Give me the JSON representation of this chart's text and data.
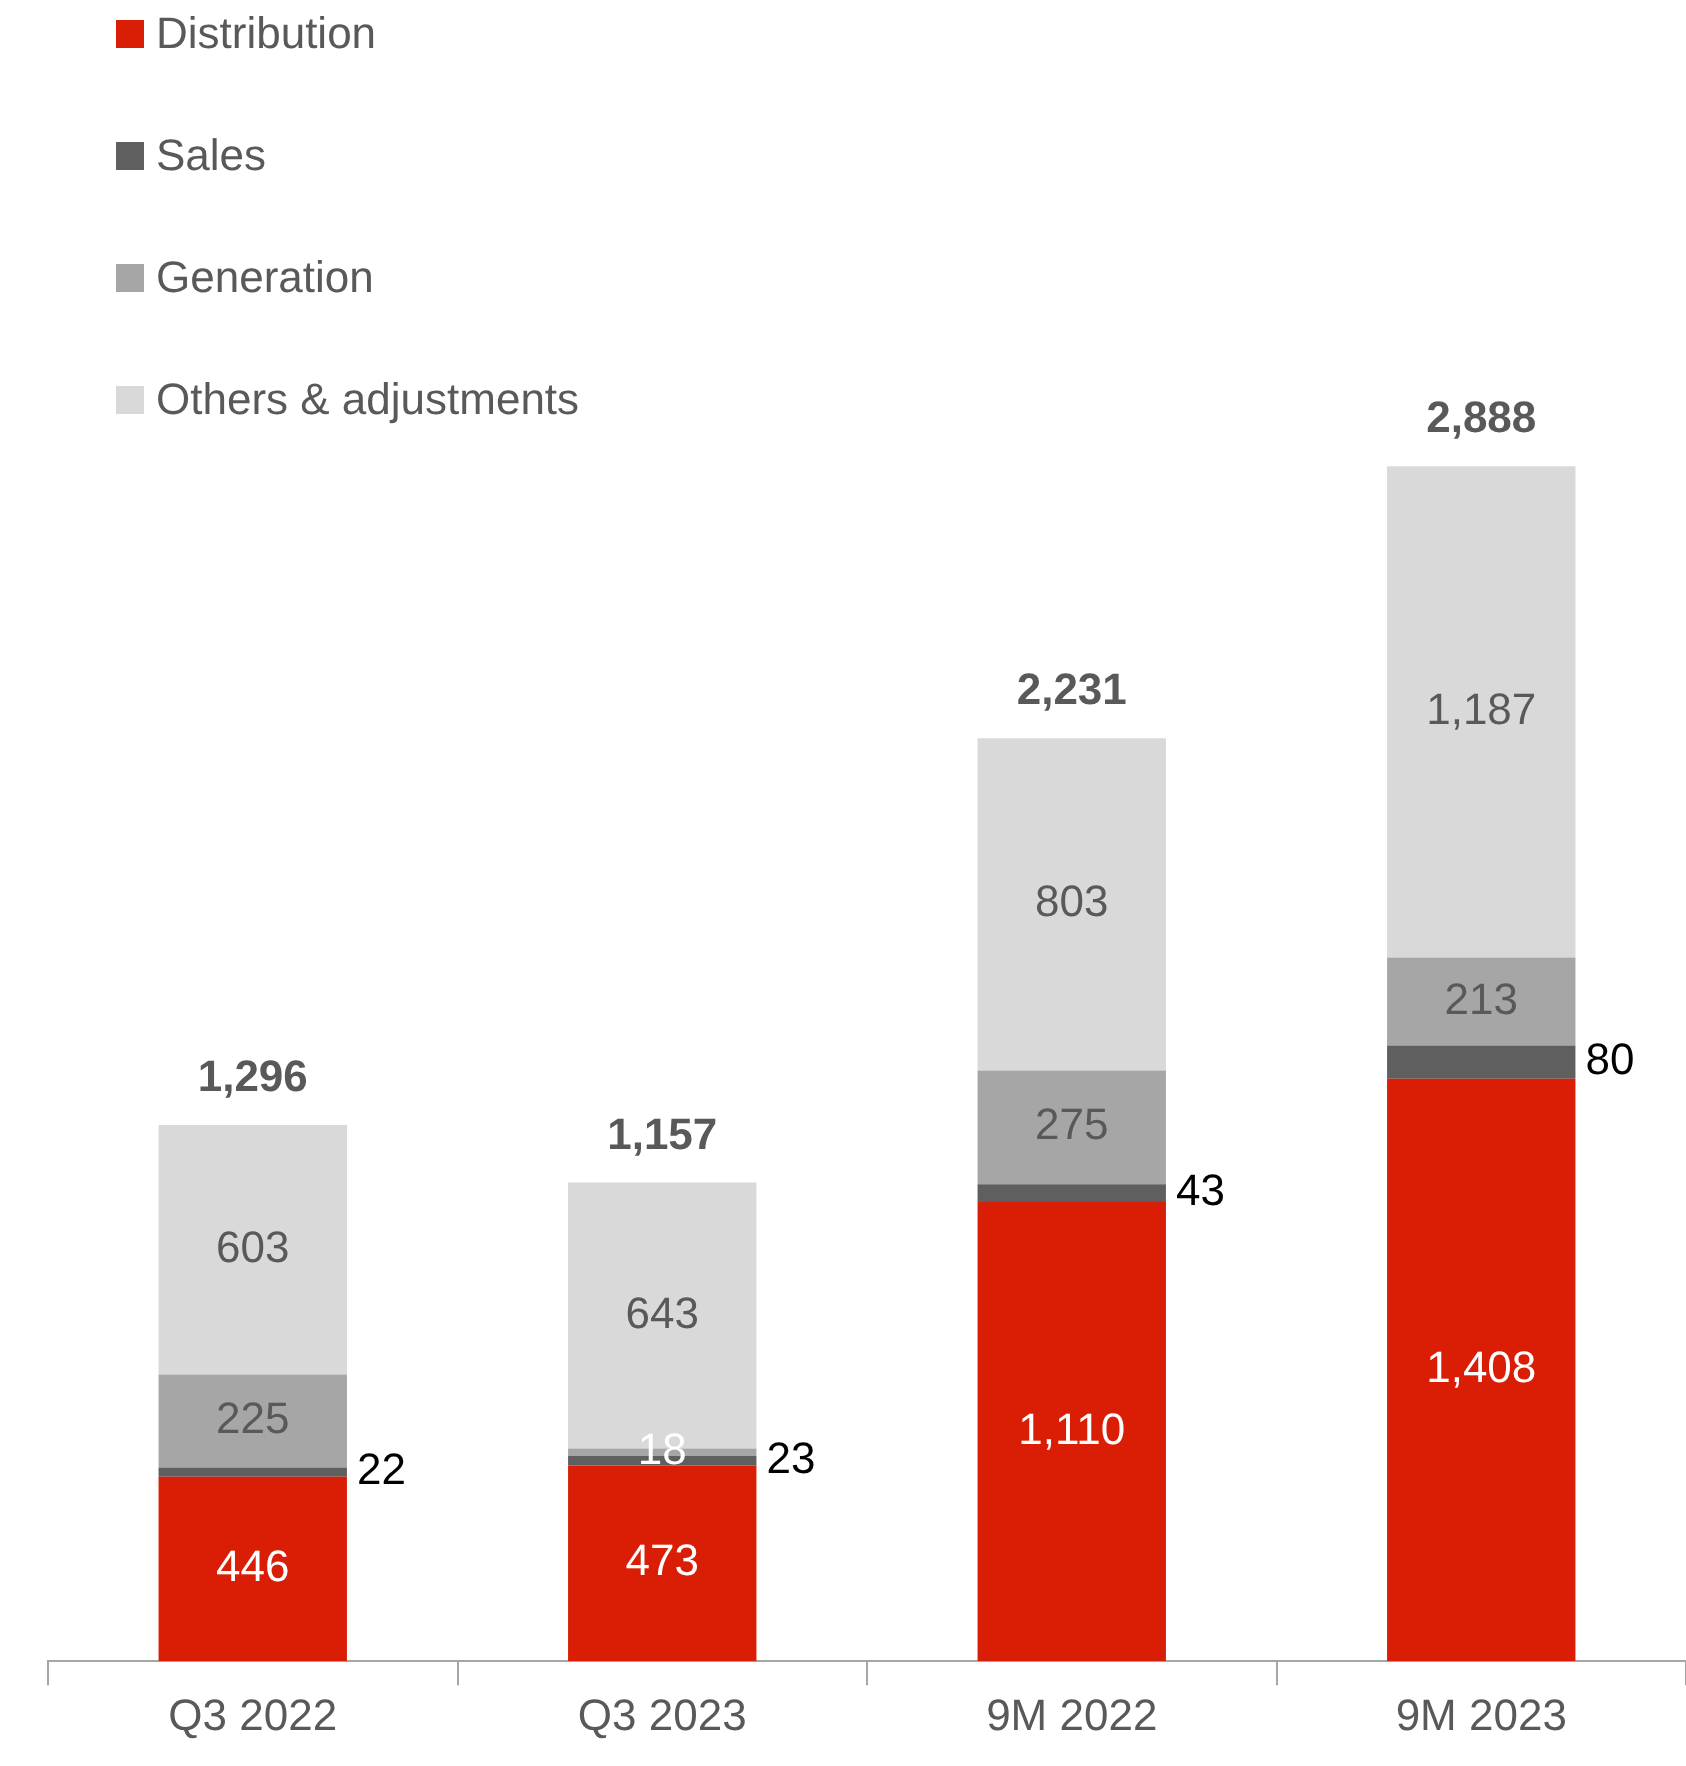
{
  "chart_data": {
    "type": "bar",
    "stacked": true,
    "categories": [
      "Q3 2022",
      "Q3 2023",
      "9M 2022",
      "9M 2023"
    ],
    "series": [
      {
        "name": "Distribution",
        "color": "#d91e05",
        "values": [
          446,
          473,
          1110,
          1408
        ],
        "value_labels": [
          "446",
          "473",
          "1,110",
          "1,408"
        ]
      },
      {
        "name": "Sales",
        "color": "#5f5f5f",
        "values": [
          22,
          23,
          43,
          80
        ],
        "value_labels": [
          "22",
          "23",
          "43",
          "80"
        ]
      },
      {
        "name": "Generation",
        "color": "#a6a6a6",
        "values": [
          225,
          18,
          275,
          213
        ],
        "value_labels": [
          "225",
          "18",
          "275",
          "213"
        ]
      },
      {
        "name": "Others & adjustments",
        "color": "#d9d9d9",
        "values": [
          603,
          643,
          803,
          1187
        ],
        "value_labels": [
          "603",
          "643",
          "803",
          "1,187"
        ]
      }
    ],
    "totals": [
      "1,296",
      "1,157",
      "2,231",
      "2,888"
    ],
    "legend": "top left",
    "grid": false
  }
}
